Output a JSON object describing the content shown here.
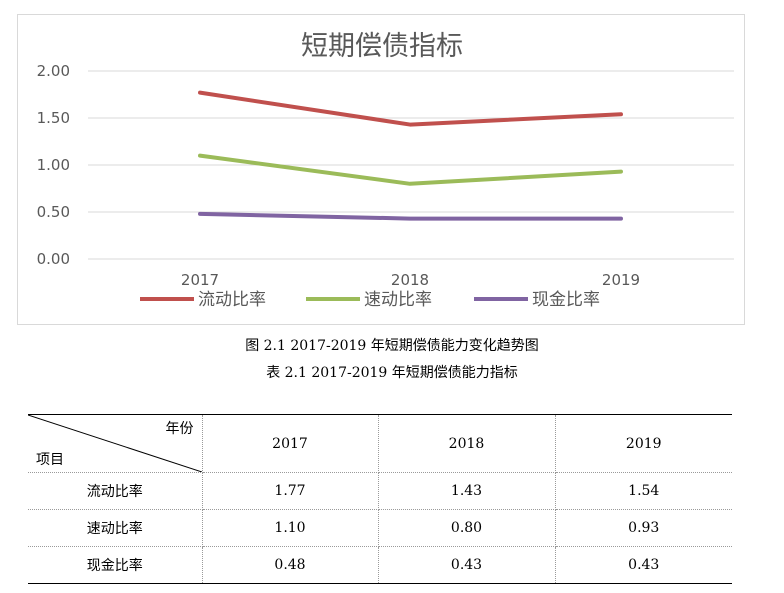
{
  "chart_data": {
    "type": "line",
    "title": "短期偿债指标",
    "categories": [
      "2017",
      "2018",
      "2019"
    ],
    "series": [
      {
        "name": "流动比率",
        "values": [
          1.77,
          1.43,
          1.54
        ],
        "color": "#c0504d"
      },
      {
        "name": "速动比率",
        "values": [
          1.1,
          0.8,
          0.93
        ],
        "color": "#9bbb59"
      },
      {
        "name": "现金比率",
        "values": [
          0.48,
          0.43,
          0.43
        ],
        "color": "#8064a2"
      }
    ],
    "y_ticks": [
      "2.00",
      "1.50",
      "1.00",
      "0.50",
      "0.00"
    ],
    "ylim": [
      0,
      2
    ],
    "grid": true,
    "legend_position": "bottom"
  },
  "captions": {
    "figure": "图 2.1 2017-2019 年短期偿债能力变化趋势图",
    "table": "表 2.1 2017-2019 年短期偿债能力指标"
  },
  "table": {
    "corner_top": "年份",
    "corner_bottom": "项目",
    "years": [
      "2017",
      "2018",
      "2019"
    ],
    "rows": [
      {
        "label": "流动比率",
        "values": [
          "1.77",
          "1.43",
          "1.54"
        ]
      },
      {
        "label": "速动比率",
        "values": [
          "1.10",
          "0.80",
          "0.93"
        ]
      },
      {
        "label": "现金比率",
        "values": [
          "0.48",
          "0.43",
          "0.43"
        ]
      }
    ]
  }
}
